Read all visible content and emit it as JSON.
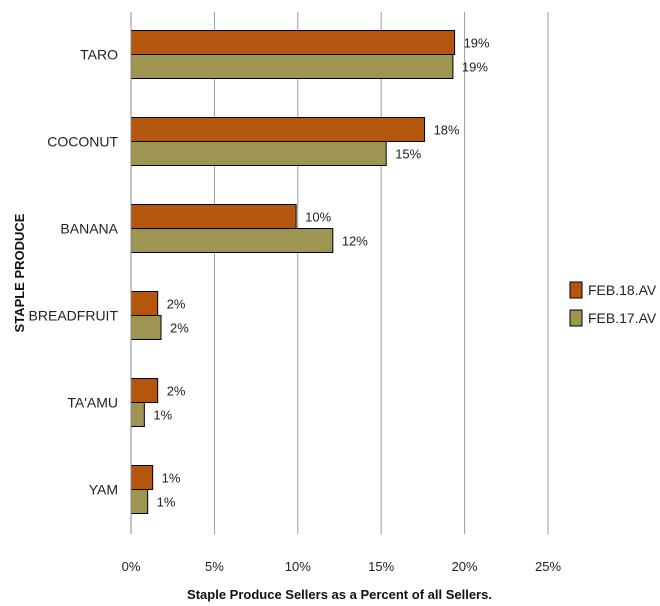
{
  "chart_data": {
    "type": "bar",
    "orientation": "horizontal",
    "categories": [
      "TARO",
      "COCONUT",
      "BANANA",
      "BREADFRUIT",
      "TA'AMU",
      "YAM"
    ],
    "series": [
      {
        "name": "FEB.18.AV",
        "color": "#b5560f",
        "values": [
          19.4,
          17.6,
          9.9,
          1.6,
          1.6,
          1.3
        ],
        "labels": [
          "19%",
          "18%",
          "10%",
          "2%",
          "2%",
          "1%"
        ]
      },
      {
        "name": "FEB.17.AV",
        "color": "#9e9552",
        "values": [
          19.3,
          15.3,
          12.1,
          1.8,
          0.8,
          1.0
        ],
        "labels": [
          "19%",
          "15%",
          "12%",
          "2%",
          "1%",
          "1%"
        ]
      }
    ],
    "xlabel": "Staple Produce Sellers as a Percent of all Sellers.",
    "ylabel": "STAPLE PRODUCE",
    "xlim": [
      0,
      25
    ],
    "xticks": [
      "0%",
      "5%",
      "10%",
      "15%",
      "20%",
      "25%"
    ],
    "grid": "vertical",
    "legend_position": "right"
  }
}
